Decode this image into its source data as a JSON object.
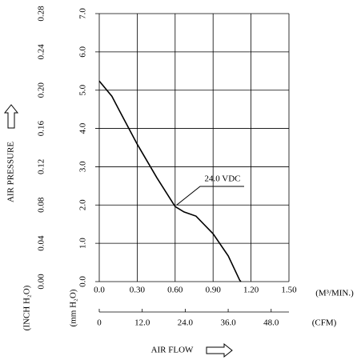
{
  "chart_data": {
    "type": "line",
    "xlabel": "AIR FLOW",
    "ylabel": "AIR PRESSURE",
    "x_unit": "(M³/MIN.)",
    "x2_unit": "(CFM)",
    "y_unit": "(mm H₂O)",
    "y2_unit": "(INCH H₂O)",
    "x": [
      0,
      0.1,
      0.165,
      0.3,
      0.456,
      0.6,
      0.67,
      0.765,
      0.9,
      1.02,
      1.11,
      1.12
    ],
    "series": [
      {
        "name": "24.0 VDC",
        "color": "#000000",
        "values": [
          5.24,
          4.84,
          4.43,
          3.59,
          2.71,
          1.96,
          1.82,
          1.71,
          1.25,
          0.67,
          0.04,
          0
        ]
      }
    ],
    "xlim": [
      0,
      1.5
    ],
    "xticks": [
      {
        "value": 0,
        "label": "0.0"
      },
      {
        "value": 0.3,
        "label": "0.30"
      },
      {
        "value": 0.6,
        "label": "0.60"
      },
      {
        "value": 0.9,
        "label": "0.90"
      },
      {
        "value": 1.2,
        "label": "1.20"
      },
      {
        "value": 1.5,
        "label": "1.50"
      }
    ],
    "x2lim": [
      0,
      52.97
    ],
    "x2ticks": [
      0,
      {
        "value": 12,
        "label": "12.0"
      },
      {
        "value": 24,
        "label": "24.0"
      },
      {
        "value": 36,
        "label": "36.0"
      },
      {
        "value": 48,
        "label": "48.0"
      }
    ],
    "ylim": [
      0,
      7
    ],
    "yticks": [
      {
        "value": 0,
        "label": "0.0"
      },
      {
        "value": 1,
        "label": "1.0"
      },
      {
        "value": 2,
        "label": "2.0"
      },
      {
        "value": 3,
        "label": "3.0"
      },
      {
        "value": 4,
        "label": "4.0"
      },
      {
        "value": 5,
        "label": "5.0"
      },
      {
        "value": 6,
        "label": "6.0"
      },
      {
        "value": 7,
        "label": "7.0"
      }
    ],
    "y2lim": [
      0,
      0.28
    ],
    "y2ticks": [
      {
        "value": 0,
        "label": "0.00"
      },
      {
        "value": 0.04,
        "label": "0.04"
      },
      {
        "value": 0.08,
        "label": "0.08"
      },
      {
        "value": 0.12,
        "label": "0.12"
      },
      {
        "value": 0.16,
        "label": "0.16"
      },
      {
        "value": 0.2,
        "label": "0.20"
      },
      {
        "value": 0.24,
        "label": "0.24"
      },
      {
        "value": 0.28,
        "label": "0.28"
      }
    ],
    "grid": true
  }
}
